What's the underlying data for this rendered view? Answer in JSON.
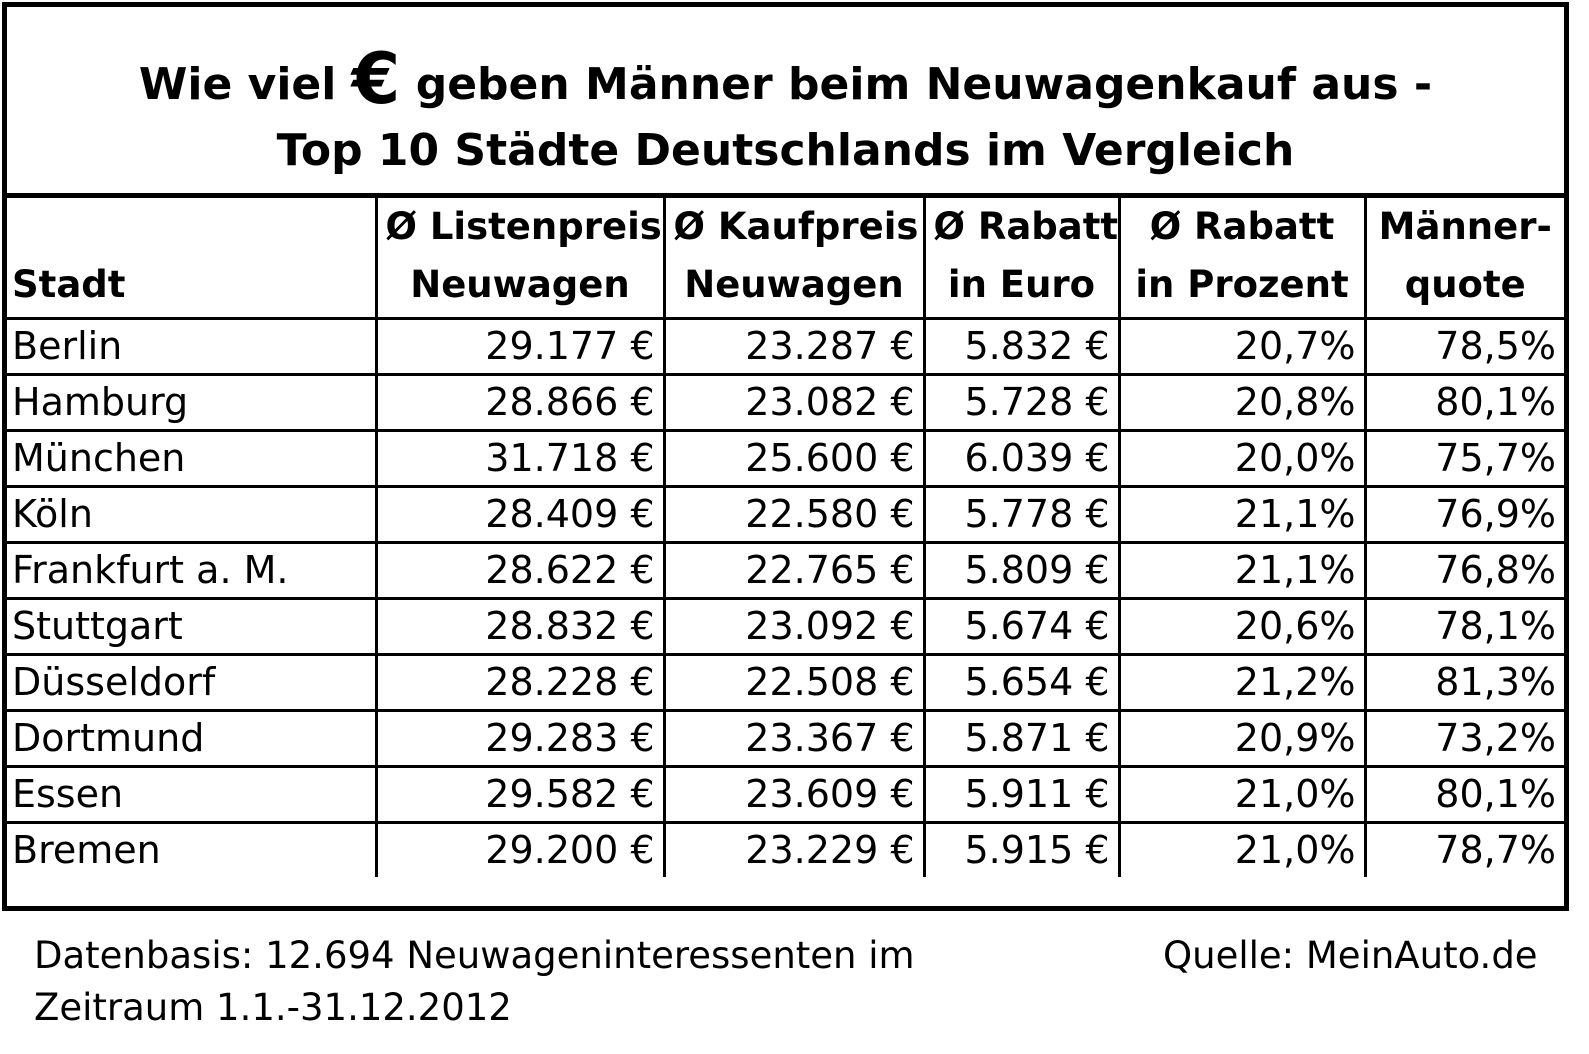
{
  "chart_data": {
    "type": "table",
    "title_line1_pre": "Wie viel",
    "title_line1_symbol": "€",
    "title_line1_post": "geben Männer beim Neuwagenkauf aus -",
    "title_line2": "Top 10 Städte Deutschlands im Vergleich",
    "columns": [
      {
        "line1": "",
        "line2": "Stadt"
      },
      {
        "line1": "Ø Listenpreis",
        "line2": "Neuwagen"
      },
      {
        "line1": "Ø Kaufpreis",
        "line2": "Neuwagen"
      },
      {
        "line1": "Ø Rabatt",
        "line2": "in Euro"
      },
      {
        "line1": "Ø Rabatt",
        "line2": "in Prozent"
      },
      {
        "line1": "Männer-",
        "line2": "quote"
      }
    ],
    "rows": [
      [
        "Berlin",
        "29.177 €",
        "23.287 €",
        "5.832 €",
        "20,7%",
        "78,5%"
      ],
      [
        "Hamburg",
        "28.866 €",
        "23.082 €",
        "5.728 €",
        "20,8%",
        "80,1%"
      ],
      [
        "München",
        "31.718 €",
        "25.600 €",
        "6.039 €",
        "20,0%",
        "75,7%"
      ],
      [
        "Köln",
        "28.409 €",
        "22.580 €",
        "5.778 €",
        "21,1%",
        "76,9%"
      ],
      [
        "Frankfurt a. M.",
        "28.622 €",
        "22.765 €",
        "5.809 €",
        "21,1%",
        "76,8%"
      ],
      [
        "Stuttgart",
        "28.832 €",
        "23.092 €",
        "5.674 €",
        "20,6%",
        "78,1%"
      ],
      [
        "Düsseldorf",
        "28.228 €",
        "22.508 €",
        "5.654 €",
        "21,2%",
        "81,3%"
      ],
      [
        "Dortmund",
        "29.283 €",
        "23.367 €",
        "5.871 €",
        "20,9%",
        "73,2%"
      ],
      [
        "Essen",
        "29.582 €",
        "23.609 €",
        "5.911 €",
        "21,0%",
        "80,1%"
      ],
      [
        "Bremen",
        "29.200 €",
        "23.229 €",
        "5.915 €",
        "21,0%",
        "78,7%"
      ]
    ]
  },
  "footer": {
    "note_line1": "Datenbasis: 12.694 Neuwageninteressenten im",
    "note_line2": "Zeitraum 1.1.-31.12.2012",
    "source": "Quelle: MeinAuto.de"
  }
}
